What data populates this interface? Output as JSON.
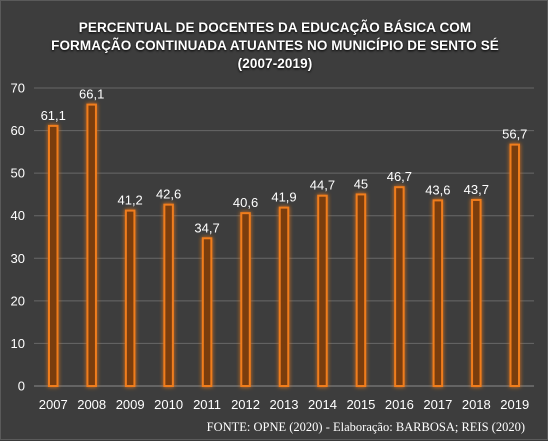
{
  "chart_data": {
    "type": "bar",
    "title_lines": [
      "PERCENTUAL DE DOCENTES DA EDUCAÇÃO BÁSICA COM",
      "FORMAÇÃO CONTINUADA ATUANTES NO MUNICÍPIO DE SENTO SÉ",
      "(2007-2019)"
    ],
    "categories": [
      "2007",
      "2008",
      "2009",
      "2010",
      "2011",
      "2012",
      "2013",
      "2014",
      "2015",
      "2016",
      "2017",
      "2018",
      "2019"
    ],
    "values": [
      61.1,
      66.1,
      41.2,
      42.6,
      34.7,
      40.6,
      41.9,
      44.7,
      45,
      46.7,
      43.6,
      43.7,
      56.7
    ],
    "value_labels": [
      "61,1",
      "66,1",
      "41,2",
      "42,6",
      "34,7",
      "40,6",
      "41,9",
      "44,7",
      "45",
      "46,7",
      "43,6",
      "43,7",
      "56,7"
    ],
    "ylim": [
      0,
      70
    ],
    "yticks": [
      0,
      10,
      20,
      30,
      40,
      50,
      60,
      70
    ],
    "grid": true,
    "bar_color": "#f07d1e",
    "background_color": "#3d3d3d",
    "source_note": "FONTE: OPNE (2020) - Elaboração: BARBOSA; REIS (2020)"
  }
}
